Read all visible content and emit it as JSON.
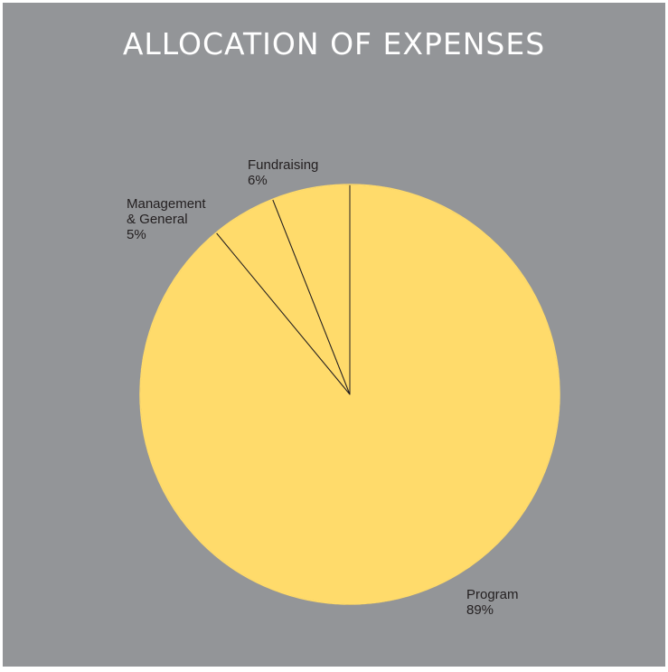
{
  "chart_data": {
    "type": "pie",
    "title": "ALLOCATION OF EXPENSES",
    "slices": [
      {
        "label": [
          "Program"
        ],
        "value": 89
      },
      {
        "label": [
          "Management",
          "& General"
        ],
        "value": 5
      },
      {
        "label": [
          "Fundraising"
        ],
        "value": 6
      }
    ],
    "value_labels": [
      "89%",
      "5%",
      "6%"
    ],
    "colors": {
      "background": "#939598",
      "slice_fill": "#ffdb6b",
      "slice_stroke": "#231f20",
      "title_color": "#ffffff",
      "label_color": "#231f20"
    }
  }
}
